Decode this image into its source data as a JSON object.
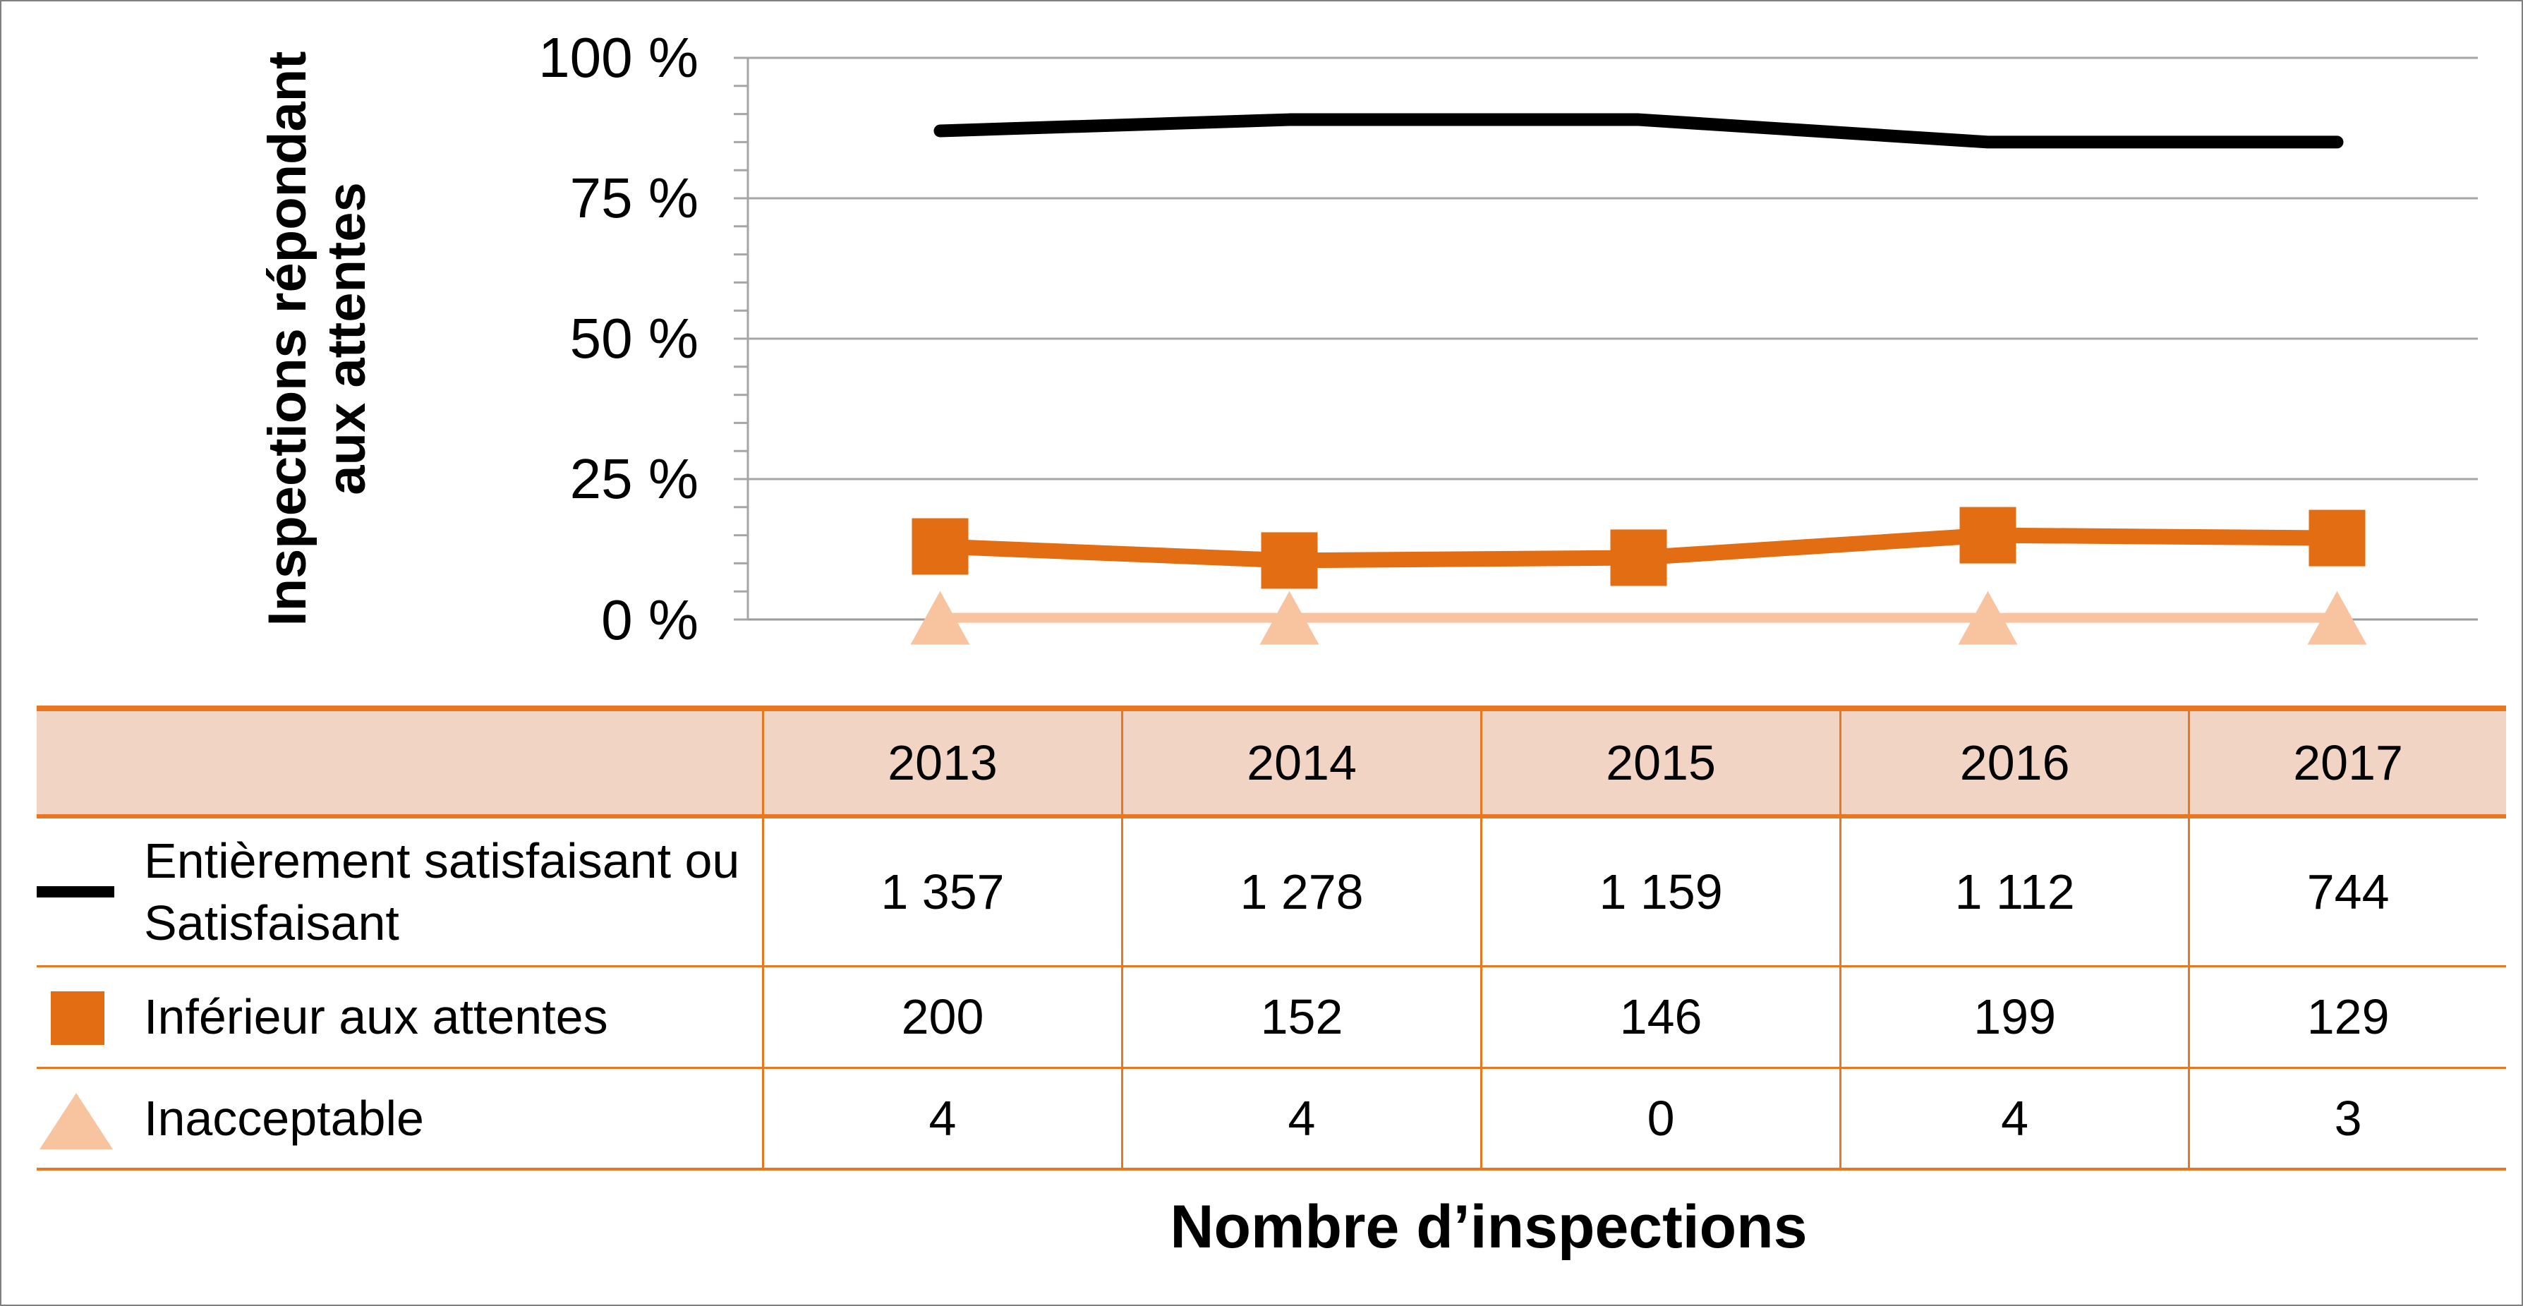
{
  "chart_data": {
    "type": "line",
    "ylabel": "Inspections répondant aux attentes",
    "xlabel": "Nombre d’inspections",
    "yticks": [
      "0 %",
      "25 %",
      "50 %",
      "75 %",
      "100 %"
    ],
    "ylim": [
      0,
      100
    ],
    "categories": [
      "2013",
      "2014",
      "2015",
      "2016",
      "2017"
    ],
    "series": [
      {
        "name": "Entièrement satisfaisant ou Satisfaisant",
        "values": [
          87,
          89,
          89,
          85,
          85
        ],
        "counts": [
          "1 357",
          "1 278",
          "1 159",
          "1 112",
          "744"
        ],
        "color": "#000000",
        "marker": "none"
      },
      {
        "name": "Inférieur aux attentes",
        "values": [
          13,
          10.5,
          11,
          15,
          14.5
        ],
        "counts": [
          "200",
          "152",
          "146",
          "199",
          "129"
        ],
        "color": "#e26d12",
        "marker": "square"
      },
      {
        "name": "Inacceptable",
        "values": [
          0.3,
          0.3,
          0.3,
          0.3,
          0.3
        ],
        "counts": [
          "4",
          "4",
          "0",
          "4",
          "3"
        ],
        "color": "#f8c39f",
        "marker": "triangle"
      }
    ],
    "grid": true,
    "legend": "table-below"
  }
}
